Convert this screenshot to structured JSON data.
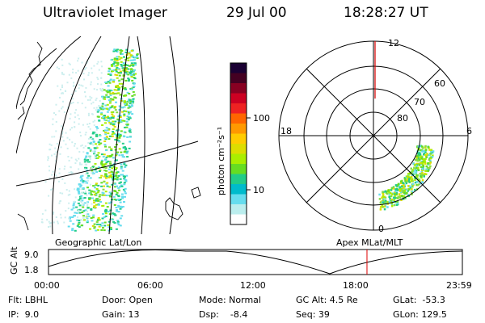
{
  "header": {
    "instrument": "Ultraviolet Imager",
    "date": "29 Jul 00",
    "time": "18:28:27 UT"
  },
  "colorbar": {
    "unit_label": "photon cm⁻²s⁻¹",
    "ticks": [
      "100",
      "10"
    ],
    "colors": [
      "#1a0033",
      "#440022",
      "#880022",
      "#cc0022",
      "#ee2222",
      "#ff6600",
      "#ff9900",
      "#ffcc00",
      "#dddd00",
      "#aaee00",
      "#66dd22",
      "#22cc88",
      "#00bbcc",
      "#66ddee",
      "#bbeeee",
      "#ffffff"
    ]
  },
  "polar_plot": {
    "mlt_labels": [
      "12",
      "18",
      "6",
      "0"
    ],
    "mlat_labels": [
      "60",
      "70",
      "80"
    ]
  },
  "map_labels": {
    "left": "Geographic Lat/Lon",
    "right": "Apex MLat/MLT"
  },
  "timeline": {
    "axis_label": "GC Alt",
    "y_ticks": [
      "9.0",
      "1.8"
    ],
    "x_ticks": [
      "00:00",
      "06:00",
      "12:00",
      "18:00",
      "23:59"
    ],
    "current_time_fraction": 0.7695
  },
  "footer": {
    "flt": "Flt: LBHL",
    "ip": "IP:  9.0",
    "door": "Door: Open",
    "gain": "Gain: 13",
    "mode": "Mode: Normal",
    "dsp": "Dsp:    -8.4",
    "gc_alt": "GC Alt: 4.5 Re",
    "seq": "Seq: 39",
    "glat": "GLat:  -53.3",
    "glon": "GLon: 129.5"
  }
}
